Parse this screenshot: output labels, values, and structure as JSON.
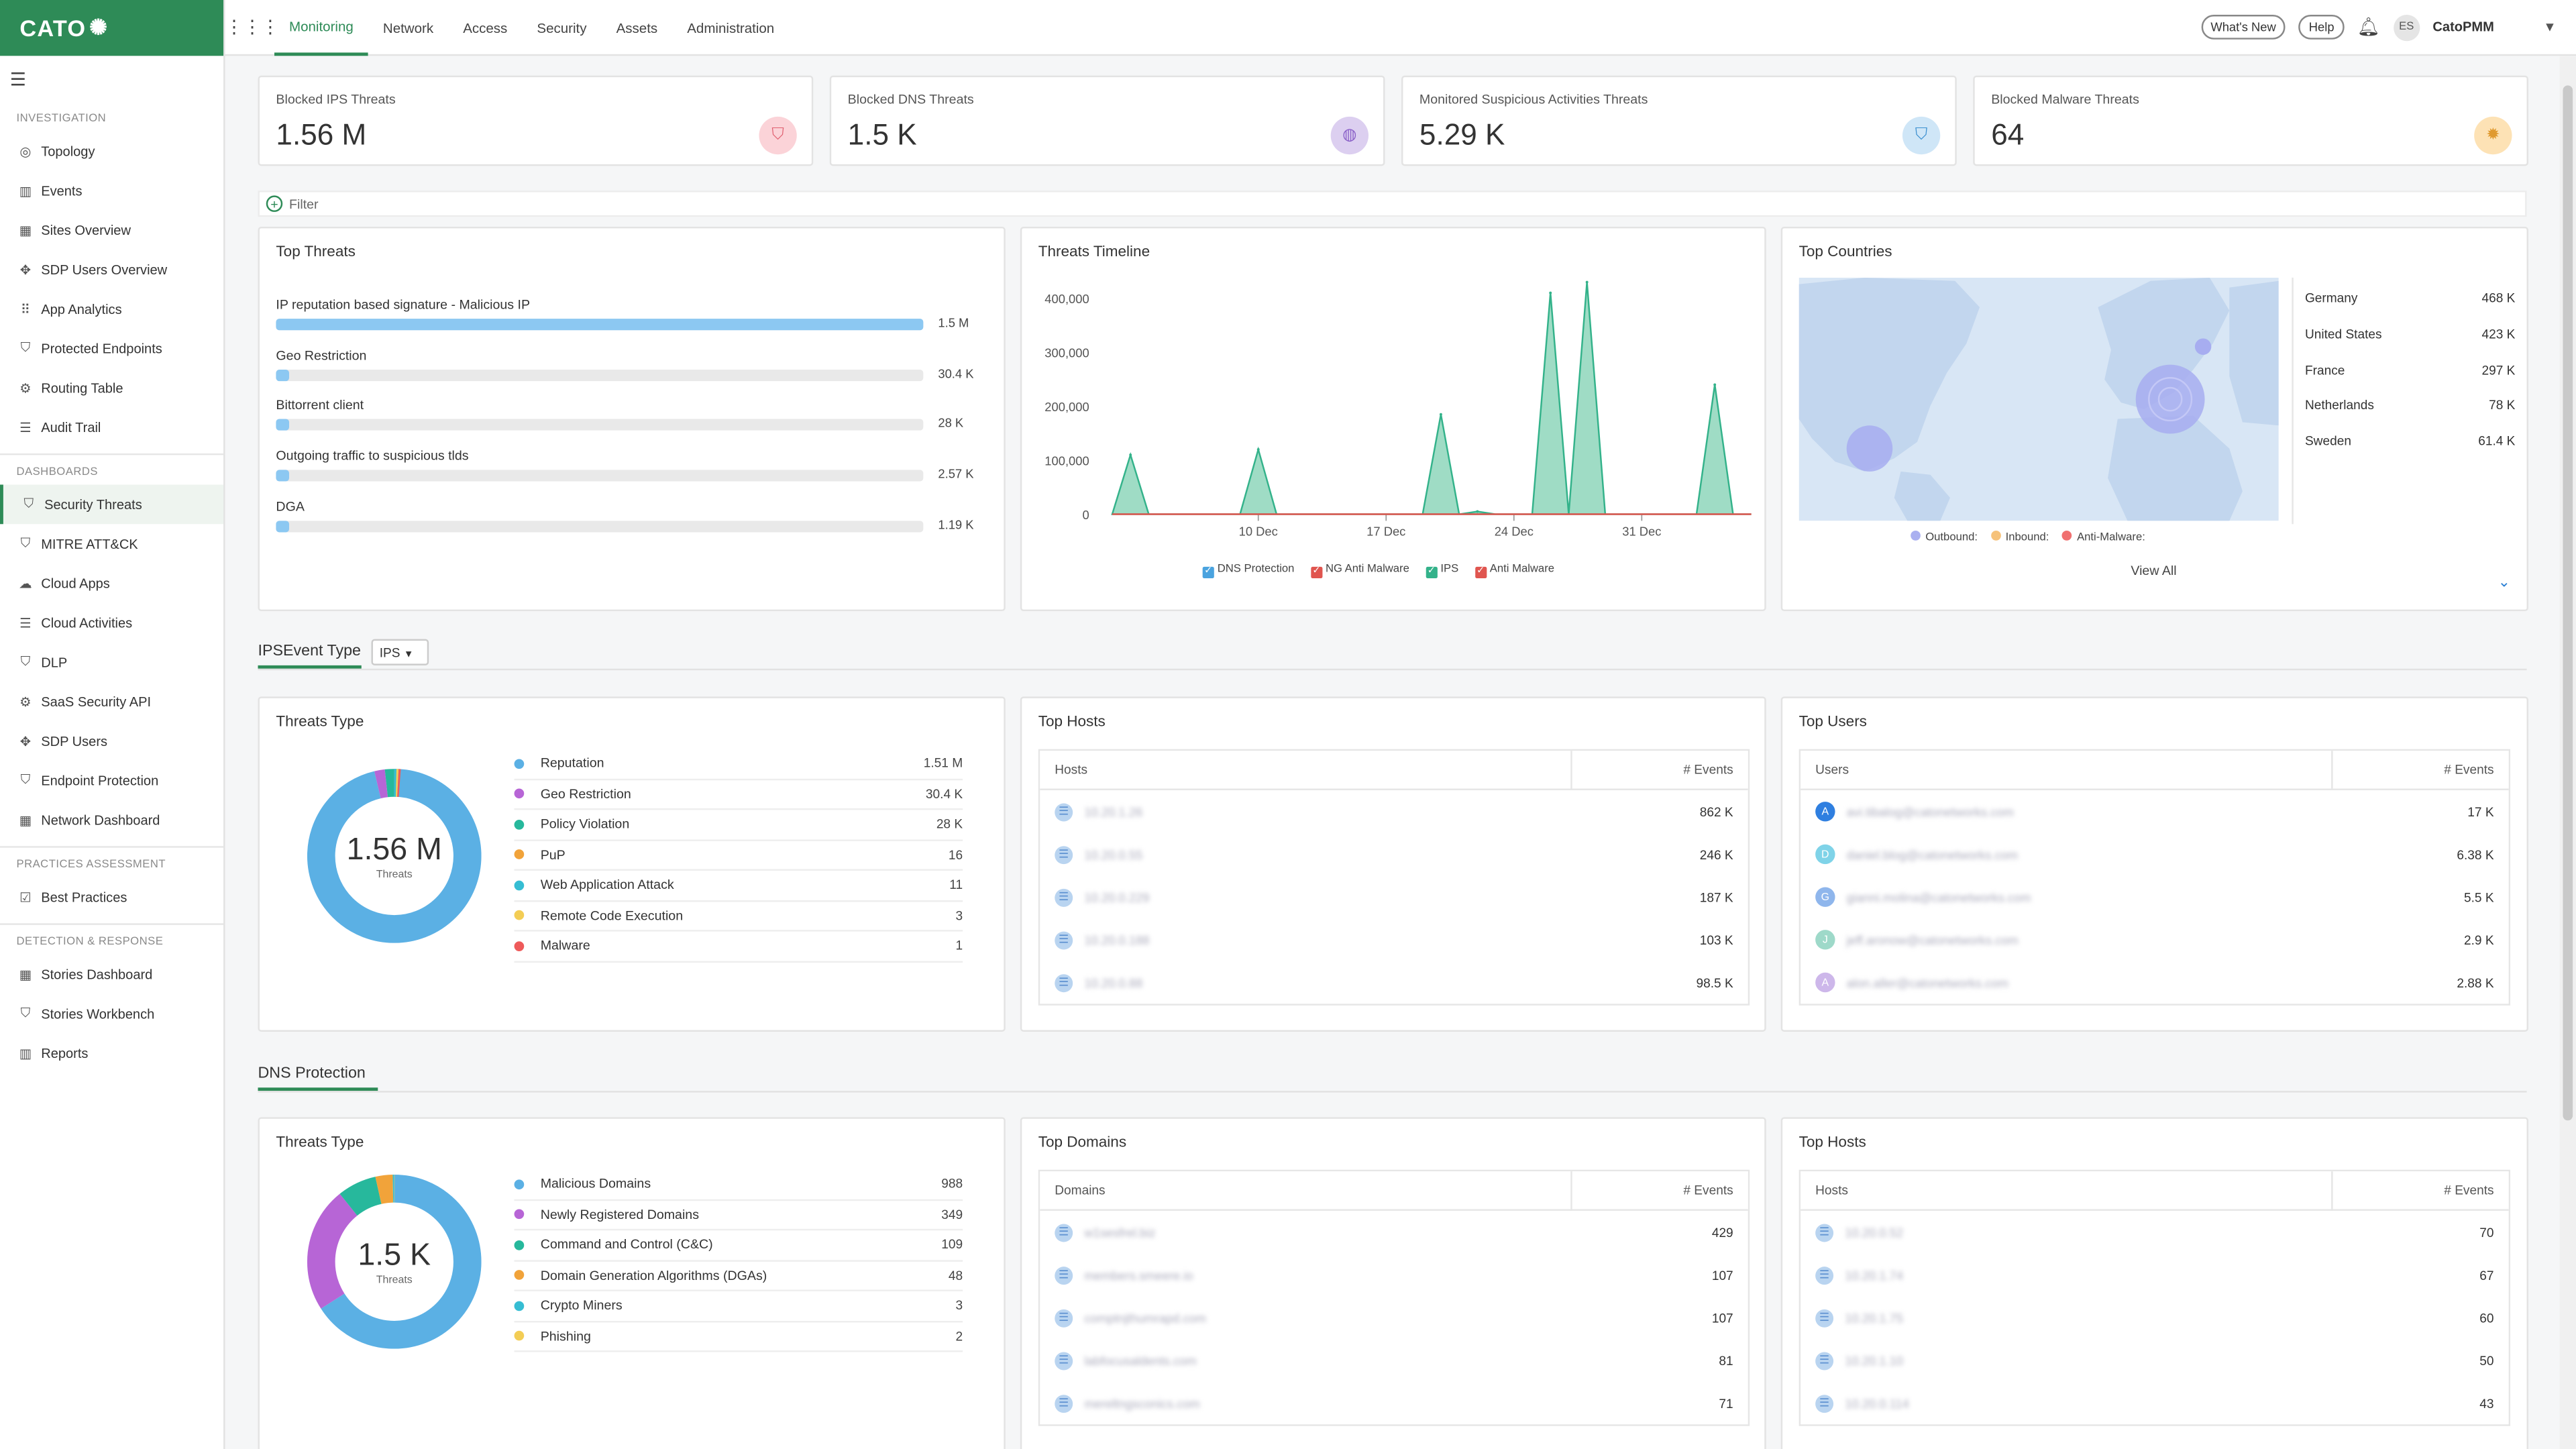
{
  "app": {
    "logo_text": "CATO",
    "user": "CatoPMM",
    "user_initials": "ES"
  },
  "topnav": {
    "tabs": [
      "Monitoring",
      "Network",
      "Access",
      "Security",
      "Assets",
      "Administration"
    ],
    "active": "Monitoring",
    "whats_new": "What's New",
    "help": "Help"
  },
  "sidebar": {
    "sections": [
      {
        "title": "INVESTIGATION",
        "items": [
          {
            "label": "Topology",
            "icon": "target-icon"
          },
          {
            "label": "Events",
            "icon": "bar-chart-icon"
          },
          {
            "label": "Sites Overview",
            "icon": "grid-icon"
          },
          {
            "label": "SDP Users Overview",
            "icon": "move-icon"
          },
          {
            "label": "App Analytics",
            "icon": "dots-grid-icon"
          },
          {
            "label": "Protected Endpoints",
            "icon": "shield-icon"
          },
          {
            "label": "Routing Table",
            "icon": "routing-icon"
          },
          {
            "label": "Audit Trail",
            "icon": "list-icon"
          }
        ]
      },
      {
        "title": "DASHBOARDS",
        "items": [
          {
            "label": "Security Threats",
            "icon": "shield-icon",
            "active": true
          },
          {
            "label": "MITRE ATT&CK",
            "icon": "shield-icon"
          },
          {
            "label": "Cloud Apps",
            "icon": "cloud-icon"
          },
          {
            "label": "Cloud Activities",
            "icon": "list-icon"
          },
          {
            "label": "DLP",
            "icon": "shield-icon"
          },
          {
            "label": "SaaS Security API",
            "icon": "gear-icon"
          },
          {
            "label": "SDP Users",
            "icon": "move-icon"
          },
          {
            "label": "Endpoint Protection",
            "icon": "shield-icon"
          },
          {
            "label": "Network Dashboard",
            "icon": "grid-icon"
          }
        ]
      },
      {
        "title": "PRACTICES ASSESSMENT",
        "items": [
          {
            "label": "Best Practices",
            "icon": "checkbox-icon"
          }
        ]
      },
      {
        "title": "DETECTION & RESPONSE",
        "items": [
          {
            "label": "Stories Dashboard",
            "icon": "grid-icon"
          },
          {
            "label": "Stories Workbench",
            "icon": "shield-icon"
          },
          {
            "label": "Reports",
            "icon": "bar-chart-icon"
          }
        ]
      }
    ]
  },
  "kpis": [
    {
      "label": "Blocked IPS Threats",
      "value": "1.56 M",
      "icon": "shield-icon",
      "bg": "#fbd3d8",
      "fg": "#e06070"
    },
    {
      "label": "Blocked DNS Threats",
      "value": "1.5 K",
      "icon": "globe-icon",
      "bg": "#dccff0",
      "fg": "#8a60c8"
    },
    {
      "label": "Monitored Suspicious Activities Threats",
      "value": "5.29 K",
      "icon": "bucket-icon",
      "bg": "#cfe6f7",
      "fg": "#3a8fd0"
    },
    {
      "label": "Blocked Malware Threats",
      "value": "64",
      "icon": "bug-icon",
      "bg": "#fde2b5",
      "fg": "#e09a30"
    }
  ],
  "filter": {
    "label": "Filter"
  },
  "top_threats": {
    "title": "Top Threats",
    "items": [
      {
        "name": "IP reputation based signature - Malicious IP",
        "value": "1.5 M",
        "fraction": 1.0
      },
      {
        "name": "Geo Restriction",
        "value": "30.4 K",
        "fraction": 0.02
      },
      {
        "name": "Bittorrent client",
        "value": "28 K",
        "fraction": 0.018
      },
      {
        "name": "Outgoing traffic to suspicious tlds",
        "value": "2.57 K",
        "fraction": 0.002
      },
      {
        "name": "DGA",
        "value": "1.19 K",
        "fraction": 0.001
      }
    ]
  },
  "threats_timeline": {
    "title": "Threats Timeline",
    "legend": [
      "DNS Protection",
      "NG Anti Malware",
      "IPS",
      "Anti Malware"
    ],
    "legend_colors": [
      "#4aa3df",
      "#e0554f",
      "#33b28a",
      "#e0554f"
    ]
  },
  "chart_data": {
    "type": "area",
    "title": "Threats Timeline",
    "x_ticks": [
      "10 Dec",
      "17 Dec",
      "24 Dec",
      "31 Dec"
    ],
    "y_ticks": [
      "0",
      "100,000",
      "200,000",
      "300,000",
      "400,000"
    ],
    "ylim": [
      0,
      420000
    ],
    "x_domain": [
      "2 Dec",
      "6 Jan"
    ],
    "series": [
      {
        "name": "IPS",
        "color": "#33b28a",
        "points": [
          {
            "x": "2 Dec",
            "y": 0
          },
          {
            "x": "3 Dec",
            "y": 110000
          },
          {
            "x": "4 Dec",
            "y": 0
          },
          {
            "x": "9 Dec",
            "y": 0
          },
          {
            "x": "10 Dec",
            "y": 120000
          },
          {
            "x": "11 Dec",
            "y": 0
          },
          {
            "x": "19 Dec",
            "y": 0
          },
          {
            "x": "20 Dec",
            "y": 185000
          },
          {
            "x": "21 Dec",
            "y": 0
          },
          {
            "x": "22 Dec",
            "y": 5000
          },
          {
            "x": "23 Dec",
            "y": 0
          },
          {
            "x": "25 Dec",
            "y": 0
          },
          {
            "x": "26 Dec",
            "y": 410000
          },
          {
            "x": "27 Dec",
            "y": 0
          },
          {
            "x": "28 Dec",
            "y": 430000
          },
          {
            "x": "29 Dec",
            "y": 0
          },
          {
            "x": "3 Jan",
            "y": 0
          },
          {
            "x": "4 Jan",
            "y": 240000
          },
          {
            "x": "5 Jan",
            "y": 0
          },
          {
            "x": "6 Jan",
            "y": 0
          }
        ]
      },
      {
        "name": "NG Anti Malware",
        "color": "#e0554f",
        "flat": 0
      }
    ]
  },
  "top_countries": {
    "title": "Top Countries",
    "items": [
      {
        "name": "Germany",
        "value": "468 K"
      },
      {
        "name": "United States",
        "value": "423 K"
      },
      {
        "name": "France",
        "value": "297 K"
      },
      {
        "name": "Netherlands",
        "value": "78 K"
      },
      {
        "name": "Sweden",
        "value": "61.4 K"
      }
    ],
    "legend": [
      "Outbound:",
      "Inbound:",
      "Anti-Malware:"
    ],
    "legend_colors": [
      "#aab0f0",
      "#f6c27a",
      "#f07070"
    ],
    "view_all": "View All"
  },
  "ips_section": {
    "title": "IPSEvent Type",
    "select_value": "IPS"
  },
  "ips_threats_type": {
    "title": "Threats Type",
    "total": "1.56 M",
    "total_label": "Threats",
    "items": [
      {
        "name": "Reputation",
        "value": "1.51 M",
        "color": "#5bb0e4"
      },
      {
        "name": "Geo Restriction",
        "value": "30.4 K",
        "color": "#b765d6"
      },
      {
        "name": "Policy Violation",
        "value": "28 K",
        "color": "#27b89c"
      },
      {
        "name": "PuP",
        "value": "16",
        "color": "#f1a33a"
      },
      {
        "name": "Web Application Attack",
        "value": "11",
        "color": "#36bdd3"
      },
      {
        "name": "Remote Code Execution",
        "value": "3",
        "color": "#f3cd55"
      },
      {
        "name": "Malware",
        "value": "1",
        "color": "#ee5a5a"
      }
    ]
  },
  "ips_top_hosts": {
    "title": "Top Hosts",
    "col_a": "Hosts",
    "col_b": "# Events",
    "rows": [
      {
        "name": "10.20.1.26",
        "value": "862 K"
      },
      {
        "name": "10.20.0.55",
        "value": "246 K"
      },
      {
        "name": "10.20.0.229",
        "value": "187 K"
      },
      {
        "name": "10.20.0.188",
        "value": "103 K"
      },
      {
        "name": "10.20.0.88",
        "value": "98.5 K"
      }
    ]
  },
  "ips_top_users": {
    "title": "Top Users",
    "col_a": "Users",
    "col_b": "# Events",
    "rows": [
      {
        "initial": "A",
        "name": "avi.tibalog@catonetworks.com",
        "value": "17 K",
        "color": "#2f7fe0"
      },
      {
        "initial": "D",
        "name": "daniel.blog@catonetworks.com",
        "value": "6.38 K",
        "color": "#7fd3e8"
      },
      {
        "initial": "G",
        "name": "gianni.molina@catonetworks.com",
        "value": "5.5 K",
        "color": "#8fb6ec"
      },
      {
        "initial": "J",
        "name": "jeff.aronow@catonetworks.com",
        "value": "2.9 K",
        "color": "#9ed9c9"
      },
      {
        "initial": "A",
        "name": "alon.aller@catonetworks.com",
        "value": "2.88 K",
        "color": "#cdb7ea"
      }
    ]
  },
  "dns_section": {
    "title": "DNS Protection"
  },
  "dns_threats_type": {
    "title": "Threats Type",
    "total": "1.5 K",
    "total_label": "Threats",
    "items": [
      {
        "name": "Malicious Domains",
        "value": "988",
        "color": "#5bb0e4"
      },
      {
        "name": "Newly Registered Domains",
        "value": "349",
        "color": "#b765d6"
      },
      {
        "name": "Command and Control (C&C)",
        "value": "109",
        "color": "#27b89c"
      },
      {
        "name": "Domain Generation Algorithms (DGAs)",
        "value": "48",
        "color": "#f1a33a"
      },
      {
        "name": "Crypto Miners",
        "value": "3",
        "color": "#36bdd3"
      },
      {
        "name": "Phishing",
        "value": "2",
        "color": "#f3cd55"
      }
    ]
  },
  "dns_top_domains": {
    "title": "Top Domains",
    "col_a": "Domains",
    "col_b": "# Events",
    "rows": [
      {
        "name": "w1sesfrel.biz",
        "value": "429"
      },
      {
        "name": "members.smeere.io",
        "value": "107"
      },
      {
        "name": "comptnjthumrapd.com",
        "value": "107"
      },
      {
        "name": "labfocusaldents.com",
        "value": "81"
      },
      {
        "name": "mereltngsconics.com",
        "value": "71"
      }
    ]
  },
  "dns_top_hosts": {
    "title": "Top Hosts",
    "col_a": "Hosts",
    "col_b": "# Events",
    "rows": [
      {
        "name": "10.20.0.52",
        "value": "70"
      },
      {
        "name": "10.20.1.74",
        "value": "67"
      },
      {
        "name": "10.20.1.75",
        "value": "60"
      },
      {
        "name": "10.20.1.10",
        "value": "50"
      },
      {
        "name": "10.20.0.114",
        "value": "43"
      }
    ]
  }
}
